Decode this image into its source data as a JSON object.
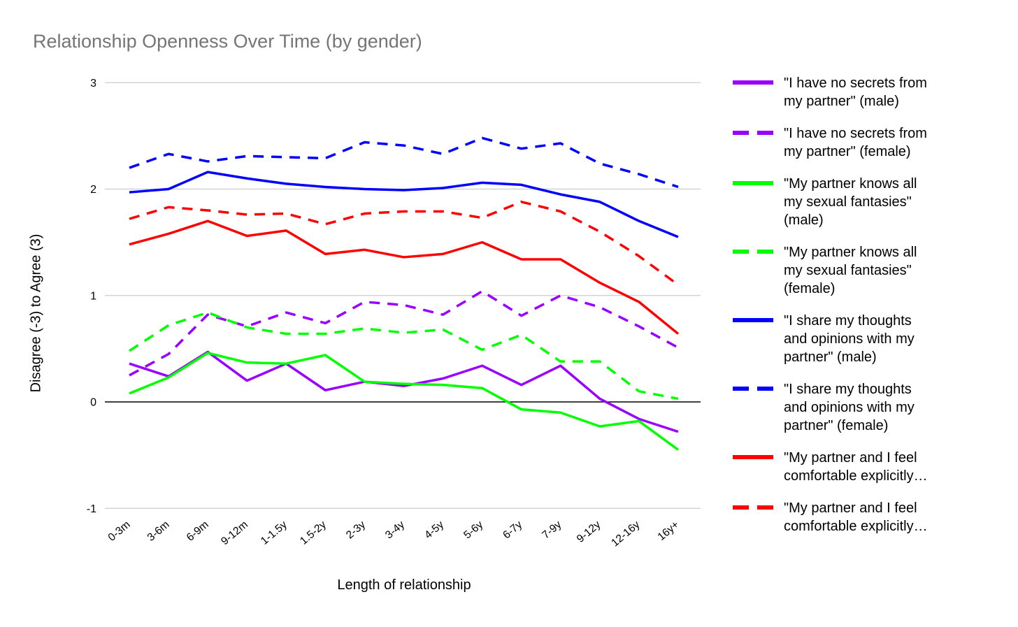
{
  "title": "Relationship Openness Over Time (by gender)",
  "x_axis_title": "Length of relationship",
  "y_axis_title": "Disagree (-3) to Agree (3)",
  "palette": {
    "purple": "#9900ff",
    "green": "#00ff00",
    "blue": "#0000ff",
    "red": "#ff0000",
    "title_gray": "#757575",
    "gridline": "#cccccc",
    "zero_line": "#000000"
  },
  "chart_data": {
    "type": "line",
    "categories": [
      "0-3m",
      "3-6m",
      "6-9m",
      "9-12m",
      "1-1.5y",
      "1.5-2y",
      "2-3y",
      "3-4y",
      "4-5y",
      "5-6y",
      "6-7y",
      "7-9y",
      "9-12y",
      "12-16y",
      "16y+"
    ],
    "xlabel": "Length of relationship",
    "ylabel": "Disagree (-3) to Agree (3)",
    "ylim": [
      -1,
      3
    ],
    "yticks": [
      3,
      2,
      1,
      0,
      -1
    ],
    "grid": "horizontal",
    "legend_position": "right",
    "series": [
      {
        "name": "\"I have no secrets from my partner\" (male)",
        "legend_lines": [
          "\"I have no secrets from",
          "my partner\" (male)"
        ],
        "color": "#9900ff",
        "dash": false,
        "values": [
          0.36,
          0.24,
          0.47,
          0.2,
          0.36,
          0.11,
          0.19,
          0.15,
          0.22,
          0.34,
          0.16,
          0.34,
          0.03,
          -0.16,
          -0.28
        ]
      },
      {
        "name": "\"I have no secrets from my partner\" (female)",
        "legend_lines": [
          "\"I have no secrets from",
          "my partner\" (female)"
        ],
        "color": "#9900ff",
        "dash": true,
        "values": [
          0.25,
          0.45,
          0.82,
          0.71,
          0.84,
          0.74,
          0.94,
          0.91,
          0.82,
          1.04,
          0.81,
          1.0,
          0.89,
          0.71,
          0.51
        ]
      },
      {
        "name": "\"My partner knows all my sexual fantasies\" (male)",
        "legend_lines": [
          "\"My partner knows all",
          "my sexual fantasies\"",
          "(male)"
        ],
        "color": "#00ff00",
        "dash": false,
        "values": [
          0.08,
          0.23,
          0.46,
          0.37,
          0.36,
          0.44,
          0.19,
          0.17,
          0.16,
          0.13,
          -0.07,
          -0.1,
          -0.23,
          -0.18,
          -0.45
        ]
      },
      {
        "name": "\"My partner knows all my sexual fantasies\" (female)",
        "legend_lines": [
          "\"My partner knows all",
          "my sexual fantasies\"",
          "(female)"
        ],
        "color": "#00ff00",
        "dash": true,
        "values": [
          0.48,
          0.72,
          0.84,
          0.7,
          0.64,
          0.64,
          0.69,
          0.65,
          0.68,
          0.49,
          0.63,
          0.38,
          0.38,
          0.1,
          0.03
        ]
      },
      {
        "name": "\"I share my thoughts and opinions with my partner\" (male)",
        "legend_lines": [
          "\"I share my thoughts",
          "and opinions with my",
          "partner\" (male)"
        ],
        "color": "#0000ff",
        "dash": false,
        "values": [
          1.97,
          2.0,
          2.16,
          2.1,
          2.05,
          2.02,
          2.0,
          1.99,
          2.01,
          2.06,
          2.04,
          1.95,
          1.88,
          1.7,
          1.55
        ]
      },
      {
        "name": "\"I share my thoughts and opinions with my partner\" (female)",
        "legend_lines": [
          "\"I share my thoughts",
          "and opinions with my",
          "partner\" (female)"
        ],
        "color": "#0000ff",
        "dash": true,
        "values": [
          2.2,
          2.33,
          2.26,
          2.31,
          2.3,
          2.29,
          2.44,
          2.41,
          2.33,
          2.48,
          2.38,
          2.43,
          2.24,
          2.14,
          2.02
        ]
      },
      {
        "name": "\"My partner and I feel comfortable explicitly…",
        "legend_lines": [
          "\"My partner and I feel",
          "comfortable explicitly…"
        ],
        "color": "#ff0000",
        "dash": false,
        "values": [
          1.48,
          1.58,
          1.7,
          1.56,
          1.61,
          1.39,
          1.43,
          1.36,
          1.39,
          1.5,
          1.34,
          1.34,
          1.12,
          0.94,
          0.64
        ]
      },
      {
        "name": "\"My partner and I feel comfortable explicitly…",
        "legend_lines": [
          "\"My partner and I feel",
          "comfortable explicitly…"
        ],
        "color": "#ff0000",
        "dash": true,
        "values": [
          1.72,
          1.83,
          1.8,
          1.76,
          1.77,
          1.67,
          1.77,
          1.79,
          1.79,
          1.73,
          1.88,
          1.79,
          1.6,
          1.37,
          1.1
        ]
      }
    ]
  }
}
